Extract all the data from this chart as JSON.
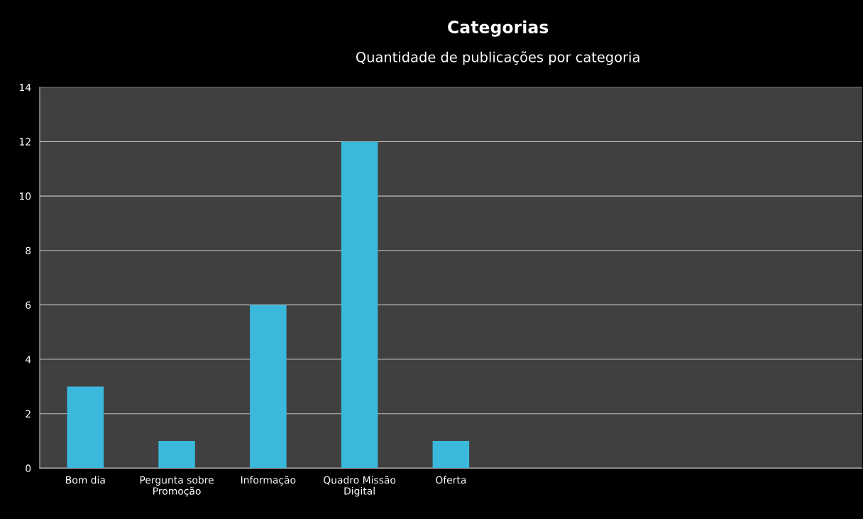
{
  "chart_data": {
    "type": "bar",
    "title": "Categorias",
    "subtitle": "Quantidade de publicações por categoria",
    "categories": [
      "Bom dia",
      "Pergunta sobre\nPromoção",
      "Informação",
      "Quadro Missão\nDigital",
      "Oferta",
      null,
      null,
      null,
      null
    ],
    "values": [
      3,
      1,
      6,
      12,
      1,
      null,
      null,
      null,
      null
    ],
    "color": "#3bb9dd",
    "ylim": [
      0,
      14
    ],
    "yticks": [
      0,
      2,
      4,
      6,
      8,
      10,
      12,
      14
    ],
    "grid": "y"
  }
}
